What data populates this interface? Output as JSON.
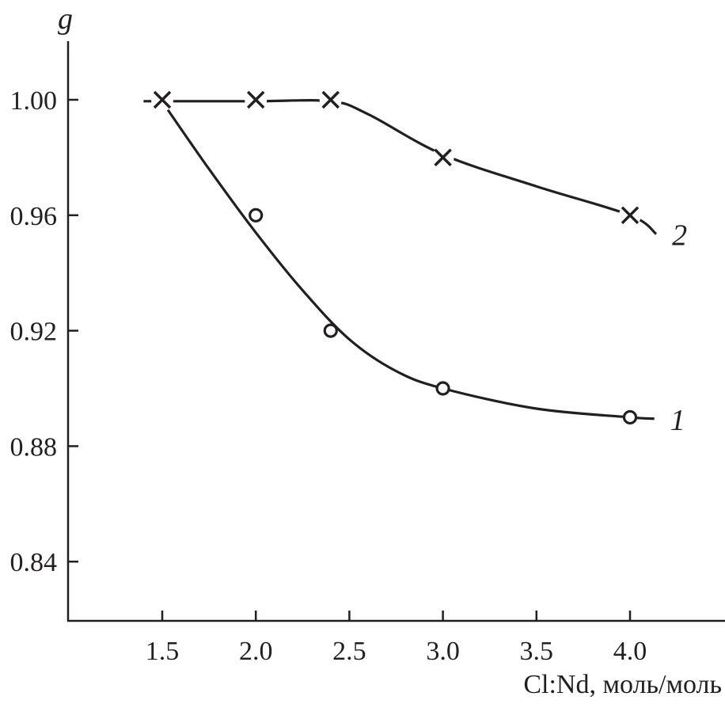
{
  "chart_data": {
    "type": "line",
    "title": "",
    "xlabel": "Cl:Nd, моль/моль",
    "ylabel": "g",
    "xlim": [
      1.0,
      4.75
    ],
    "ylim": [
      0.81,
      1.02
    ],
    "x_ticks": [
      "1.5",
      "2.0",
      "2.5",
      "3.0",
      "3.5",
      "4.0"
    ],
    "y_ticks": [
      "1.00",
      "0.96",
      "0.92",
      "0.88",
      "0.84"
    ],
    "grid": false,
    "colors": {
      "ink": "#231f20"
    },
    "series": [
      {
        "name": "1",
        "marker": "circle",
        "x": [
          2.0,
          2.4,
          3.0,
          4.0
        ],
        "y": [
          0.96,
          0.92,
          0.9,
          0.89
        ],
        "curve": [
          [
            1.53,
            0.9965
          ],
          [
            1.75,
            0.976
          ],
          [
            2.0,
            0.954
          ],
          [
            2.25,
            0.934
          ],
          [
            2.5,
            0.917
          ],
          [
            2.75,
            0.906
          ],
          [
            3.0,
            0.9
          ],
          [
            3.5,
            0.893
          ],
          [
            4.0,
            0.89
          ],
          [
            4.13,
            0.8895
          ]
        ]
      },
      {
        "name": "2",
        "marker": "cross",
        "x": [
          1.5,
          2.0,
          2.4,
          3.0,
          4.0
        ],
        "y": [
          1.0,
          1.0,
          1.0,
          0.98,
          0.96
        ],
        "curve": [
          [
            1.4,
            0.9995
          ],
          [
            2.0,
            0.9995
          ],
          [
            2.4,
            0.9995
          ],
          [
            2.6,
            0.995
          ],
          [
            3.0,
            0.981
          ],
          [
            3.5,
            0.97
          ],
          [
            4.0,
            0.96
          ],
          [
            4.14,
            0.9535
          ]
        ]
      }
    ]
  }
}
